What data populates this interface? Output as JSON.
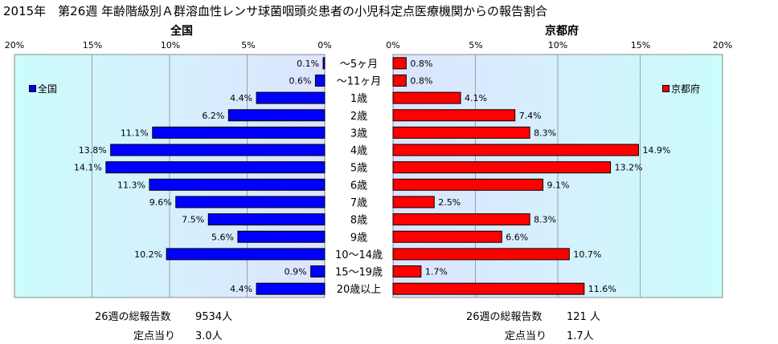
{
  "title": "2015年　第26週 年齢階級別Ａ群溶血性レンサ球菌咽頭炎患者の小児科定点医療機関からの報告割合",
  "colors": {
    "national": "#0000ff",
    "kyoto": "#ff0000",
    "bar_border": "#000000",
    "plot_bg_edge": "#ccfcfc",
    "plot_bg_center": "#dde4ff"
  },
  "chart_data": [
    {
      "type": "bar",
      "orientation": "horizontal-reversed",
      "title": "全国",
      "legend": "全国",
      "legend_placement": "top-left",
      "xlim": [
        0,
        20
      ],
      "x_ticks": [
        "0%",
        "5%",
        "10%",
        "15%",
        "20%"
      ],
      "grid": true,
      "categories": [
        "～5ヶ月",
        "～11ヶ月",
        "1歳",
        "2歳",
        "3歳",
        "4歳",
        "5歳",
        "6歳",
        "7歳",
        "8歳",
        "9歳",
        "10～14歳",
        "15～19歳",
        "20歳以上"
      ],
      "values": [
        0.1,
        0.6,
        4.4,
        6.2,
        11.1,
        13.8,
        14.1,
        11.3,
        9.6,
        7.5,
        5.6,
        10.2,
        0.9,
        4.4
      ],
      "value_labels": [
        "0.1%",
        "0.6%",
        "4.4%",
        "6.2%",
        "11.1%",
        "13.8%",
        "14.1%",
        "11.3%",
        "9.6%",
        "7.5%",
        "5.6%",
        "10.2%",
        "0.9%",
        "4.4%"
      ]
    },
    {
      "type": "bar",
      "orientation": "horizontal",
      "title": "京都府",
      "legend": "京都府",
      "legend_placement": "top-right",
      "xlim": [
        0,
        20
      ],
      "x_ticks": [
        "0%",
        "5%",
        "10%",
        "15%",
        "20%"
      ],
      "grid": true,
      "categories": [
        "～5ヶ月",
        "～11ヶ月",
        "1歳",
        "2歳",
        "3歳",
        "4歳",
        "5歳",
        "6歳",
        "7歳",
        "8歳",
        "9歳",
        "10～14歳",
        "15～19歳",
        "20歳以上"
      ],
      "values": [
        0.8,
        0.8,
        4.1,
        7.4,
        8.3,
        14.9,
        13.2,
        9.1,
        2.5,
        8.3,
        6.6,
        10.7,
        1.7,
        11.6
      ],
      "value_labels": [
        "0.8%",
        "0.8%",
        "4.1%",
        "7.4%",
        "8.3%",
        "14.9%",
        "13.2%",
        "9.1%",
        "2.5%",
        "8.3%",
        "6.6%",
        "10.7%",
        "1.7%",
        "11.6%"
      ]
    }
  ],
  "footer": {
    "national": {
      "total_label": "26週の総報告数",
      "total_value": "9534人",
      "per_site_label": "定点当り",
      "per_site_value": "3.0人"
    },
    "kyoto": {
      "total_label": "26週の総報告数",
      "total_value": "121 人",
      "per_site_label": "定点当り",
      "per_site_value": "1.7人"
    }
  }
}
